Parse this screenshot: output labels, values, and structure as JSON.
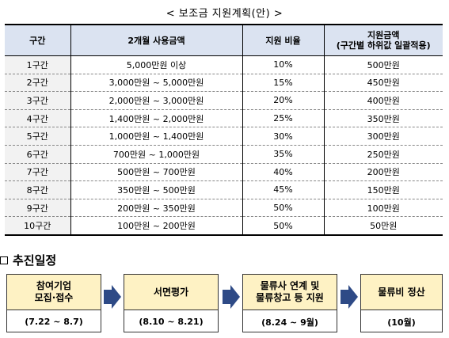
{
  "title": "< 보조금 지원계획(안) >",
  "table": {
    "headers": [
      "구간",
      "2개월 사용금액",
      "지원 비율",
      "지원금액\n(구간별 하위값 일괄적용)"
    ],
    "rows": [
      [
        "1구간",
        "5,000만원 이상",
        "10%",
        "500만원"
      ],
      [
        "2구간",
        "3,000만원 ~ 5,000만원",
        "15%",
        "450만원"
      ],
      [
        "3구간",
        "2,000만원 ~ 3,000만원",
        "20%",
        "400만원"
      ],
      [
        "4구간",
        "1,400만원 ~ 2,000만원",
        "25%",
        "350만원"
      ],
      [
        "5구간",
        "1,000만원 ~ 1,400만원",
        "30%",
        "300만원"
      ],
      [
        "6구간",
        "700만원 ~ 1,000만원",
        "35%",
        "250만원"
      ],
      [
        "7구간",
        "500만원 ~ 700만원",
        "40%",
        "200만원"
      ],
      [
        "8구간",
        "350만원 ~ 500만원",
        "45%",
        "150만원"
      ],
      [
        "9구간",
        "200만원 ~ 350만원",
        "50%",
        "100만원"
      ],
      [
        "10구간",
        "100만원 ~ 200만원",
        "50%",
        "50만원"
      ]
    ]
  },
  "section_title": "추진일정",
  "steps": [
    {
      "label": "참여기업\n모집·접수",
      "period": "(7.22 ~ 8.7)"
    },
    {
      "label": "서면평가",
      "period": "(8.10 ~ 8.21)"
    },
    {
      "label": "물류사 연계 및\n물류창고 등 지원",
      "period": "(8.24 ~ 9월)"
    },
    {
      "label": "물류비 정산",
      "period": "(10월)"
    }
  ],
  "colors": {
    "header_bg": "#dbe3f1",
    "step_bg": "#fef2c4",
    "arrow": "#2e4a86"
  }
}
